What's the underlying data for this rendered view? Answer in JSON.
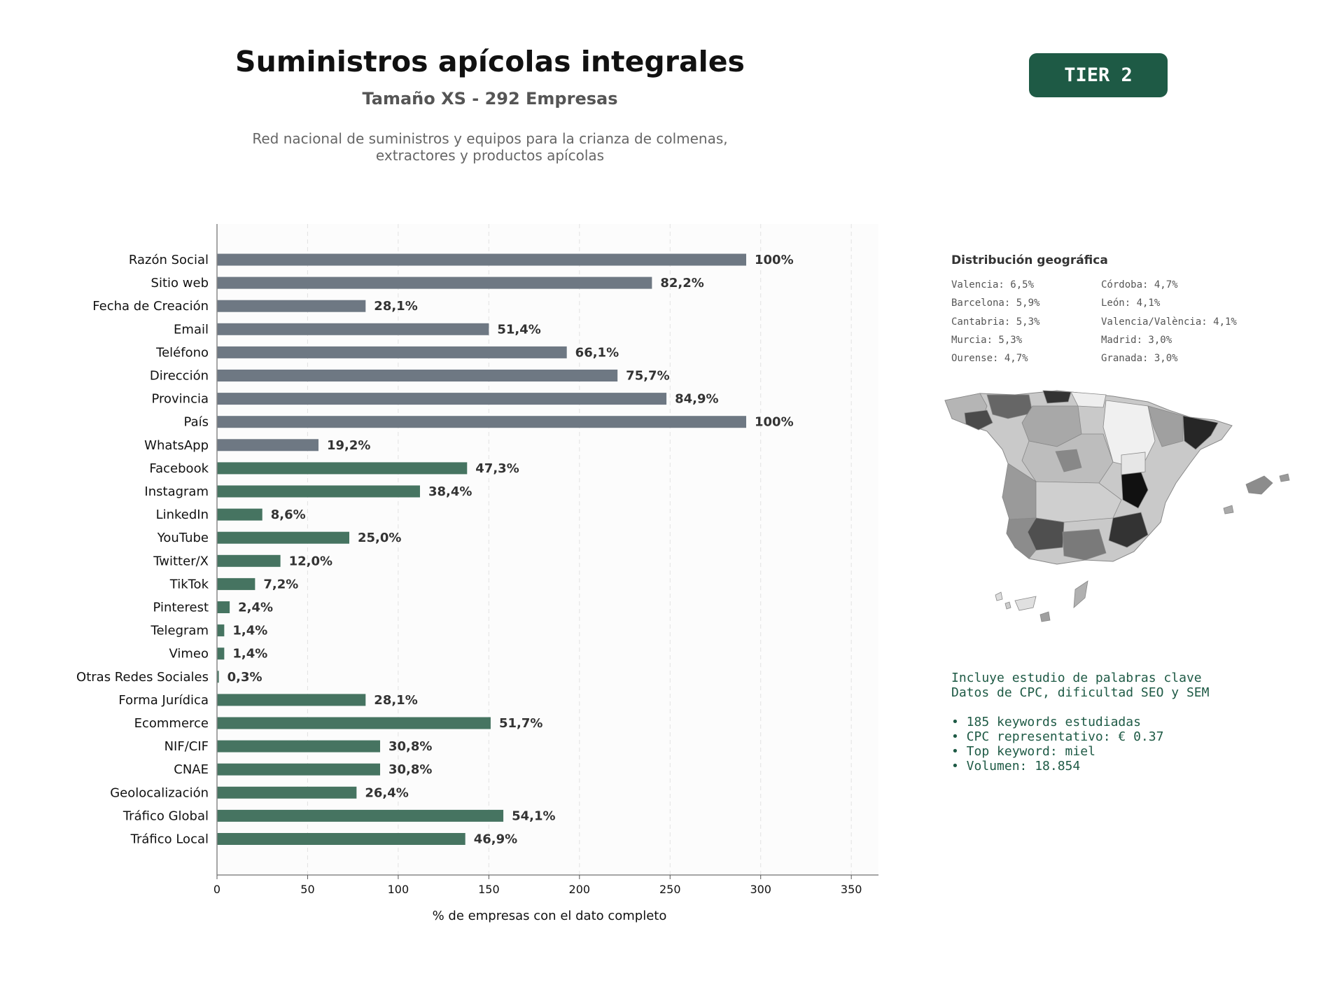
{
  "header": {
    "title": "Suministros apícolas integrales",
    "subtitle": "Tamaño XS - 292 Empresas",
    "description_line1": "Red nacional de suministros y equipos para la crianza de colmenas,",
    "description_line2": "extractores y productos apícolas",
    "tier": "TIER 2"
  },
  "colors": {
    "gray_bar": "#6e7883",
    "green_bar": "#467461",
    "accent": "#1e5a45"
  },
  "chart_data": {
    "type": "bar",
    "orientation": "horizontal",
    "xlabel": "% de empresas con el dato completo",
    "xlim": [
      0,
      365
    ],
    "xticks": [
      0,
      50,
      100,
      150,
      200,
      250,
      300,
      350
    ],
    "grid": "vertical dashed",
    "bars": [
      {
        "label": "Razón Social",
        "value": 292,
        "pct": "100%",
        "group": "gray"
      },
      {
        "label": "Sitio web",
        "value": 240,
        "pct": "82,2%",
        "group": "gray"
      },
      {
        "label": "Fecha de Creación",
        "value": 82,
        "pct": "28,1%",
        "group": "gray"
      },
      {
        "label": "Email",
        "value": 150,
        "pct": "51,4%",
        "group": "gray"
      },
      {
        "label": "Teléfono",
        "value": 193,
        "pct": "66,1%",
        "group": "gray"
      },
      {
        "label": "Dirección",
        "value": 221,
        "pct": "75,7%",
        "group": "gray"
      },
      {
        "label": "Provincia",
        "value": 248,
        "pct": "84,9%",
        "group": "gray"
      },
      {
        "label": "País",
        "value": 292,
        "pct": "100%",
        "group": "gray"
      },
      {
        "label": "WhatsApp",
        "value": 56,
        "pct": "19,2%",
        "group": "gray"
      },
      {
        "label": "Facebook",
        "value": 138,
        "pct": "47,3%",
        "group": "green"
      },
      {
        "label": "Instagram",
        "value": 112,
        "pct": "38,4%",
        "group": "green"
      },
      {
        "label": "LinkedIn",
        "value": 25,
        "pct": "8,6%",
        "group": "green"
      },
      {
        "label": "YouTube",
        "value": 73,
        "pct": "25,0%",
        "group": "green"
      },
      {
        "label": "Twitter/X",
        "value": 35,
        "pct": "12,0%",
        "group": "green"
      },
      {
        "label": "TikTok",
        "value": 21,
        "pct": "7,2%",
        "group": "green"
      },
      {
        "label": "Pinterest",
        "value": 7,
        "pct": "2,4%",
        "group": "green"
      },
      {
        "label": "Telegram",
        "value": 4,
        "pct": "1,4%",
        "group": "green"
      },
      {
        "label": "Vimeo",
        "value": 4,
        "pct": "1,4%",
        "group": "green"
      },
      {
        "label": "Otras Redes Sociales",
        "value": 1,
        "pct": "0,3%",
        "group": "green"
      },
      {
        "label": "Forma Jurídica",
        "value": 82,
        "pct": "28,1%",
        "group": "green"
      },
      {
        "label": "Ecommerce",
        "value": 151,
        "pct": "51,7%",
        "group": "green"
      },
      {
        "label": "NIF/CIF",
        "value": 90,
        "pct": "30,8%",
        "group": "green"
      },
      {
        "label": "CNAE",
        "value": 90,
        "pct": "30,8%",
        "group": "green"
      },
      {
        "label": "Geolocalización",
        "value": 77,
        "pct": "26,4%",
        "group": "green"
      },
      {
        "label": "Tráfico Global",
        "value": 158,
        "pct": "54,1%",
        "group": "green"
      },
      {
        "label": "Tráfico Local",
        "value": 137,
        "pct": "46,9%",
        "group": "green"
      }
    ]
  },
  "geo": {
    "title": "Distribución geográfica",
    "left": [
      "Valencia: 6,5%",
      "Barcelona: 5,9%",
      "Cantabria: 5,3%",
      "Murcia: 5,3%",
      "Ourense: 4,7%"
    ],
    "right": [
      "Córdoba: 4,7%",
      "León: 4,1%",
      "Valencia/València: 4,1%",
      "Madrid: 3,0%",
      "Granada: 3,0%"
    ]
  },
  "keywords": {
    "line1": "Incluye estudio de palabras clave",
    "line2": "Datos de CPC, dificultad SEO y SEM",
    "bullets": [
      "• 185 keywords estudiadas",
      "• CPC representativo: € 0.37",
      "• Top keyword: miel",
      "• Volumen: 18.854"
    ]
  }
}
